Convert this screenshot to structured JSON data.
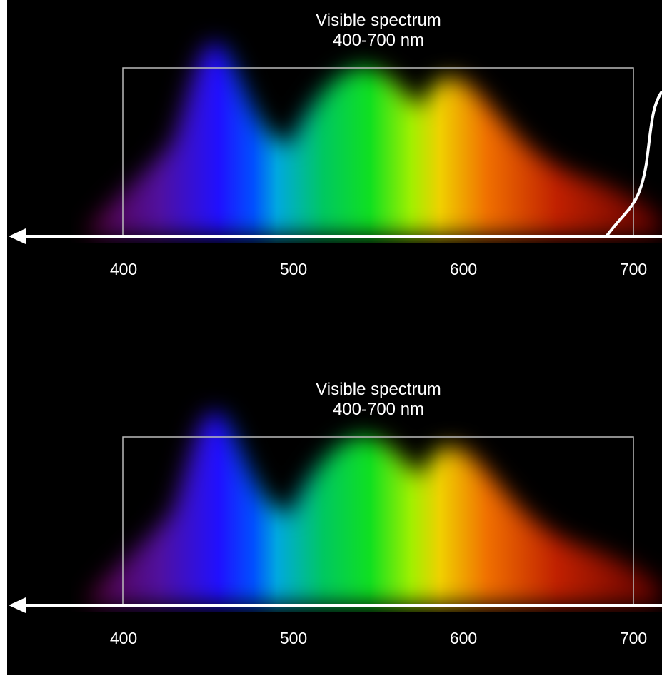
{
  "panels": [
    {
      "title": "Visible spectrum",
      "subtitle": "400-700 nm",
      "ticks": [
        400,
        500,
        600,
        700
      ]
    },
    {
      "title": "Visible spectrum",
      "subtitle": "400-700 nm",
      "ticks": [
        400,
        500,
        600,
        700
      ]
    }
  ]
}
